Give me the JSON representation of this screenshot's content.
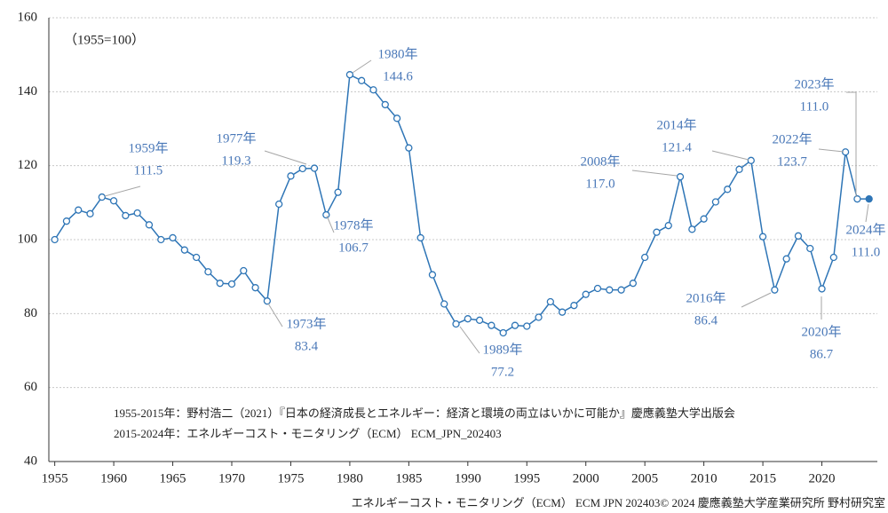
{
  "chart_data": {
    "type": "line",
    "subtitle": "（1955=100）",
    "x": [
      1955,
      1956,
      1957,
      1958,
      1959,
      1960,
      1961,
      1962,
      1963,
      1964,
      1965,
      1966,
      1967,
      1968,
      1969,
      1970,
      1971,
      1972,
      1973,
      1974,
      1975,
      1976,
      1977,
      1978,
      1979,
      1980,
      1981,
      1982,
      1983,
      1984,
      1985,
      1986,
      1987,
      1988,
      1989,
      1990,
      1991,
      1992,
      1993,
      1994,
      1995,
      1996,
      1997,
      1998,
      1999,
      2000,
      2001,
      2002,
      2003,
      2004,
      2005,
      2006,
      2007,
      2008,
      2009,
      2010,
      2011,
      2012,
      2013,
      2014,
      2015,
      2016,
      2017,
      2018,
      2019,
      2020,
      2021,
      2022,
      2023,
      2024
    ],
    "series": [
      {
        "color": "#2e75b6",
        "values": [
          100,
          105,
          108,
          107,
          111.5,
          110.5,
          106.5,
          107.2,
          104,
          100,
          100.5,
          97.2,
          95.2,
          91.3,
          88.2,
          88,
          91.6,
          87,
          83.4,
          109.6,
          117.2,
          119.2,
          119.3,
          106.7,
          112.8,
          144.6,
          143,
          140.5,
          136.5,
          132.8,
          124.8,
          100.5,
          90.5,
          82.6,
          77.2,
          78.6,
          78.2,
          76.8,
          74.8,
          76.8,
          76.6,
          79,
          83.2,
          80.4,
          82.2,
          85.2,
          86.8,
          86.4,
          86.4,
          88.2,
          95.2,
          102,
          103.8,
          117.0,
          102.8,
          105.6,
          110.2,
          113.6,
          119,
          121.4,
          100.8,
          86.4,
          94.8,
          101,
          97.6,
          86.7,
          95.2,
          123.7,
          111.0,
          111.0
        ]
      }
    ],
    "xlim": [
      1954.5,
      2024.7
    ],
    "xticks": [
      1955,
      1960,
      1965,
      1970,
      1975,
      1980,
      1985,
      1990,
      1995,
      2000,
      2005,
      2010,
      2015,
      2020
    ],
    "ylim": [
      40,
      160
    ],
    "yticks": [
      40,
      60,
      80,
      100,
      120,
      140,
      160
    ],
    "grid": true,
    "annotations": [
      {
        "label": "1959年",
        "value": "111.5"
      },
      {
        "label": "1973年",
        "value": "83.4"
      },
      {
        "label": "1977年",
        "value": "119.3"
      },
      {
        "label": "1978年",
        "value": "106.7"
      },
      {
        "label": "1980年",
        "value": "144.6"
      },
      {
        "label": "1989年",
        "value": "77.2"
      },
      {
        "label": "2008年",
        "value": "117.0"
      },
      {
        "label": "2014年",
        "value": "121.4"
      },
      {
        "label": "2016年",
        "value": "86.4"
      },
      {
        "label": "2020年",
        "value": "86.7"
      },
      {
        "label": "2022年",
        "value": "123.7"
      },
      {
        "label": "2023年",
        "value": "111.0"
      },
      {
        "label": "2024年",
        "value": "111.0"
      }
    ],
    "notes": [
      "1955-2015年：野村浩二（2021）『日本の経済成長とエネルギー：経済と環境の両立はいかに可能か』慶應義塾大学出版会",
      "2015-2024年：エネルギーコスト・モニタリング（ECM） ECM_JPN_202403"
    ],
    "footer": "エネルギーコスト・モニタリング（ECM） ECM JPN 202403© 2024 慶應義塾大学産業研究所 野村研究室"
  }
}
